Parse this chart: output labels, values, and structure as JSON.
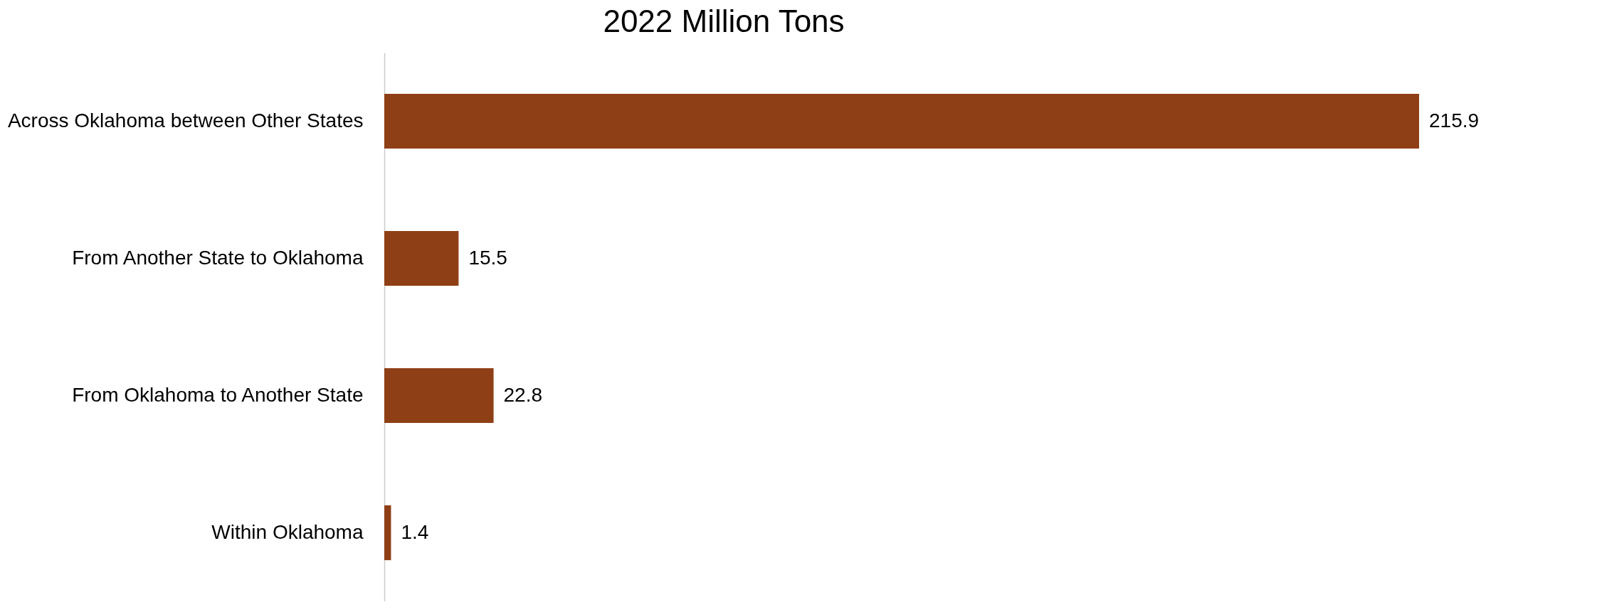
{
  "chart_data": {
    "type": "bar",
    "orientation": "horizontal",
    "title": "2022 Million Tons",
    "categories": [
      "Across Oklahoma between Other States",
      "From Another State to Oklahoma",
      "From Oklahoma to Another State",
      "Within Oklahoma"
    ],
    "values": [
      215.9,
      15.5,
      22.8,
      1.4
    ],
    "color": "#8f3f15",
    "data_labels": true
  }
}
